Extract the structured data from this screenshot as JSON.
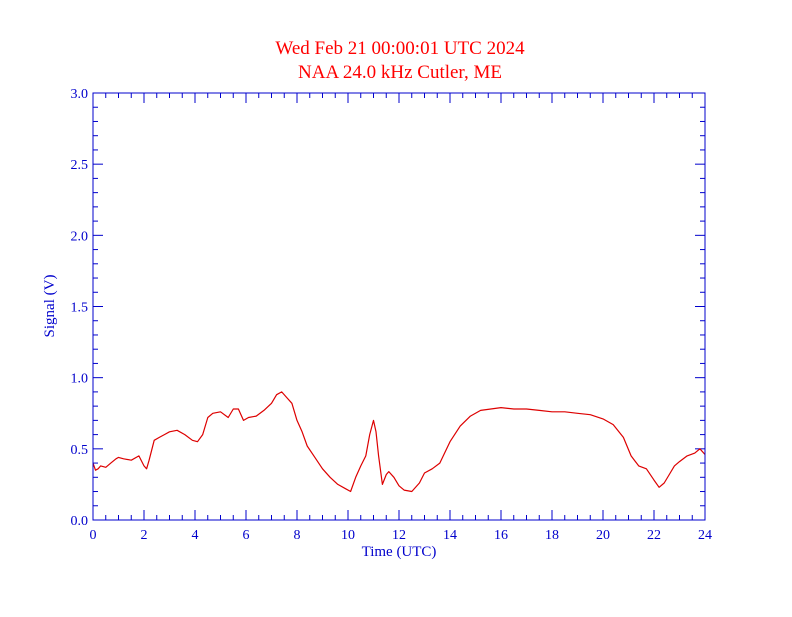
{
  "chart_data": {
    "type": "line",
    "title_line1": "Wed Feb 21 00:00:01 UTC 2024",
    "title_line2": "NAA 24.0 kHz Cutler, ME",
    "xlabel": "Time (UTC)",
    "ylabel": "Signal (V)",
    "xlim": [
      0,
      24
    ],
    "ylim": [
      0,
      3.0
    ],
    "x_ticks": [
      0,
      2,
      4,
      6,
      8,
      10,
      12,
      14,
      16,
      18,
      20,
      22,
      24
    ],
    "x_tick_labels": [
      "0",
      "2",
      "4",
      "6",
      "8",
      "10",
      "12",
      "14",
      "16",
      "18",
      "20",
      "22",
      "24"
    ],
    "y_ticks": [
      0,
      0.5,
      1.0,
      1.5,
      2.0,
      2.5,
      3.0
    ],
    "y_tick_labels": [
      "0.0",
      "0.5",
      "1.0",
      "1.5",
      "2.0",
      "2.5",
      "3.0"
    ],
    "grid": false,
    "colors": {
      "title": "#ff0000",
      "axes": "#0000cc",
      "series": "#dd0000"
    },
    "series": [
      {
        "x": [
          0,
          0.1,
          0.2,
          0.3,
          0.5,
          0.7,
          0.9,
          1.0,
          1.2,
          1.5,
          1.8,
          2.0,
          2.1,
          2.2,
          2.4,
          2.6,
          2.8,
          3.0,
          3.3,
          3.6,
          3.9,
          4.1,
          4.3,
          4.5,
          4.7,
          5.0,
          5.3,
          5.5,
          5.7,
          5.9,
          6.1,
          6.4,
          6.7,
          7.0,
          7.2,
          7.4,
          7.6,
          7.8,
          8.0,
          8.2,
          8.4,
          8.7,
          9.0,
          9.3,
          9.6,
          9.9,
          10.1,
          10.3,
          10.5,
          10.7,
          10.85,
          11.0,
          11.1,
          11.2,
          11.35,
          11.5,
          11.6,
          11.8,
          12.0,
          12.2,
          12.5,
          12.8,
          13.0,
          13.3,
          13.6,
          14.0,
          14.4,
          14.8,
          15.2,
          15.6,
          16.0,
          16.5,
          17.0,
          17.5,
          18.0,
          18.5,
          19.0,
          19.5,
          20.0,
          20.4,
          20.8,
          21.1,
          21.4,
          21.7,
          22.0,
          22.2,
          22.4,
          22.6,
          22.8,
          23.0,
          23.3,
          23.6,
          23.8,
          24.0
        ],
        "values": [
          0.4,
          0.35,
          0.36,
          0.38,
          0.37,
          0.4,
          0.43,
          0.44,
          0.43,
          0.42,
          0.45,
          0.38,
          0.36,
          0.42,
          0.56,
          0.58,
          0.6,
          0.62,
          0.63,
          0.6,
          0.56,
          0.55,
          0.6,
          0.72,
          0.75,
          0.76,
          0.72,
          0.78,
          0.78,
          0.7,
          0.72,
          0.73,
          0.77,
          0.82,
          0.88,
          0.9,
          0.86,
          0.82,
          0.7,
          0.62,
          0.52,
          0.44,
          0.36,
          0.3,
          0.25,
          0.22,
          0.2,
          0.3,
          0.38,
          0.45,
          0.6,
          0.7,
          0.62,
          0.45,
          0.25,
          0.32,
          0.34,
          0.3,
          0.24,
          0.21,
          0.2,
          0.26,
          0.33,
          0.36,
          0.4,
          0.55,
          0.66,
          0.73,
          0.77,
          0.78,
          0.79,
          0.78,
          0.78,
          0.77,
          0.76,
          0.76,
          0.75,
          0.74,
          0.71,
          0.67,
          0.58,
          0.45,
          0.38,
          0.36,
          0.28,
          0.23,
          0.26,
          0.32,
          0.38,
          0.41,
          0.45,
          0.47,
          0.5,
          0.46
        ]
      }
    ]
  }
}
